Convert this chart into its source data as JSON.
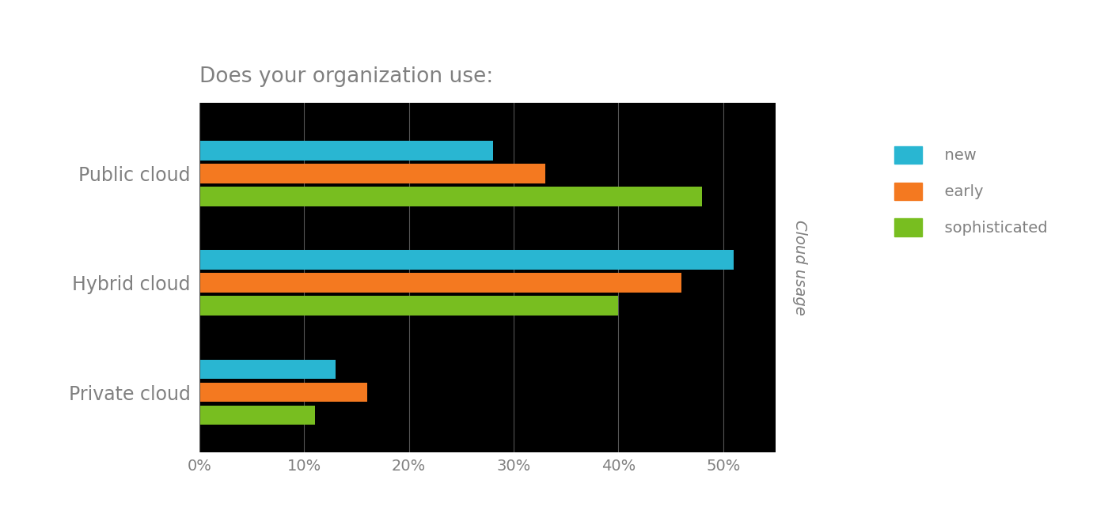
{
  "title": "Does your organization use:",
  "ylabel": "Cloud usage",
  "categories": [
    "Public cloud",
    "Hybrid cloud",
    "Private cloud"
  ],
  "series": {
    "new": [
      28,
      51,
      13
    ],
    "early": [
      33,
      46,
      16
    ],
    "sophisticated": [
      48,
      40,
      11
    ]
  },
  "colors": {
    "new": "#29b6d2",
    "early": "#f47920",
    "sophisticated": "#78be20"
  },
  "xlim": [
    0,
    55
  ],
  "xticks": [
    0,
    10,
    20,
    30,
    40,
    50
  ],
  "xtick_labels": [
    "0%",
    "10%",
    "20%",
    "30%",
    "40%",
    "50%"
  ],
  "figure_bg": "#ffffff",
  "plot_bg": "#000000",
  "text_color": "#808080",
  "title_color": "#808080",
  "ylabel_color": "#808080",
  "bar_height": 0.18,
  "title_fontsize": 19,
  "axis_fontsize": 14,
  "label_fontsize": 17,
  "legend_fontsize": 14
}
